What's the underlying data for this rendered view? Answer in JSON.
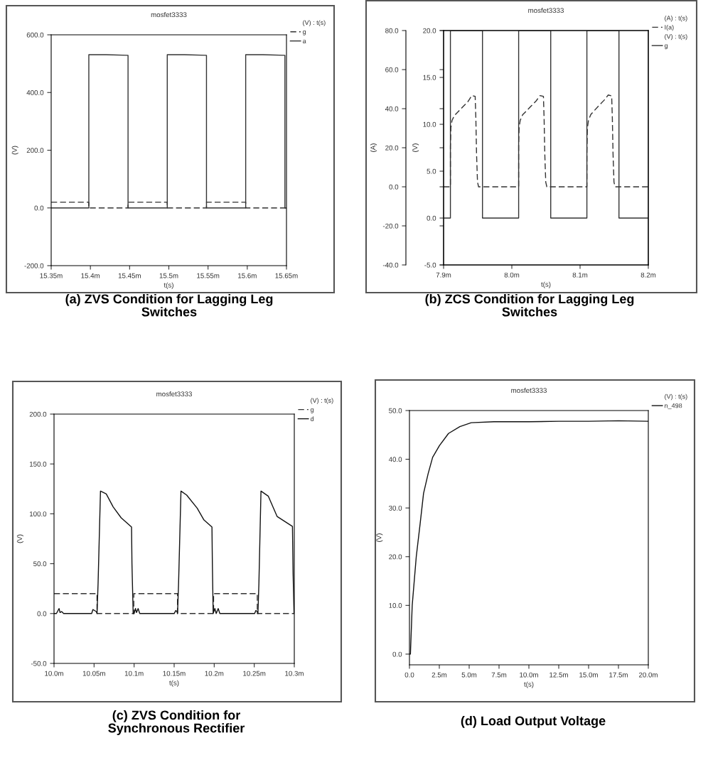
{
  "chart_data": [
    {
      "type": "line",
      "title": "mosfet3333",
      "xlabel": "t(s)",
      "ylabel": "(V)",
      "legend": "right",
      "legend_title": "(V) : t(s)",
      "xlim": [
        15.35,
        15.65
      ],
      "xticks": [
        {
          "value": 15.35,
          "label": "15.35m"
        },
        {
          "value": 15.4,
          "label": "15.4m"
        },
        {
          "value": 15.45,
          "label": "15.45m"
        },
        {
          "value": 15.5,
          "label": "15.5m"
        },
        {
          "value": 15.55,
          "label": "15.55m"
        },
        {
          "value": 15.6,
          "label": "15.6m"
        },
        {
          "value": 15.65,
          "label": "15.65m"
        }
      ],
      "ylim": [
        -200,
        600
      ],
      "yticks": [
        {
          "value": -200,
          "label": "-200.0"
        },
        {
          "value": 0,
          "label": "0.0"
        },
        {
          "value": 200,
          "label": "200.0"
        },
        {
          "value": 400,
          "label": "400.0"
        },
        {
          "value": 600,
          "label": "600.0"
        }
      ],
      "series": [
        {
          "name": "g",
          "color": "#333333",
          "line_style": "dashed",
          "x": [
            15.35,
            15.398,
            15.398,
            15.448,
            15.448,
            15.498,
            15.498,
            15.548,
            15.548,
            15.598,
            15.598,
            15.65
          ],
          "values": [
            20,
            20,
            0,
            0,
            20,
            20,
            0,
            0,
            20,
            20,
            0,
            0
          ]
        },
        {
          "name": "a",
          "color": "#333333",
          "line_style": "solid",
          "x": [
            15.35,
            15.398,
            15.398,
            15.42,
            15.448,
            15.448,
            15.498,
            15.498,
            15.52,
            15.548,
            15.548,
            15.598,
            15.598,
            15.62,
            15.648,
            15.648,
            15.65
          ],
          "values": [
            0,
            0,
            531,
            531,
            529,
            0,
            0,
            531,
            531,
            529,
            0,
            0,
            531,
            531,
            529,
            0,
            0
          ]
        }
      ],
      "annotations": [
        "(a) ZVS Condition for Lagging Leg\nSwitches"
      ]
    },
    {
      "type": "line",
      "title": "mosfet3333",
      "xlabel": "t(s)",
      "ylabel": "(A)",
      "y2label": "(V)",
      "legend": "right",
      "legend_title": "(A) : t(s)",
      "xlim": [
        7.9,
        8.2
      ],
      "xticks": [
        {
          "value": 7.9,
          "label": "7.9m"
        },
        {
          "value": 8.0,
          "label": "8.0m"
        },
        {
          "value": 8.1,
          "label": "8.1m"
        },
        {
          "value": 8.2,
          "label": "8.2m"
        }
      ],
      "ylim": [
        -40,
        80
      ],
      "yticks": [
        {
          "value": -40,
          "label": "-40.0"
        },
        {
          "value": -20,
          "label": "-20.0"
        },
        {
          "value": 0,
          "label": "0.0"
        },
        {
          "value": 20,
          "label": "20.0"
        },
        {
          "value": 40,
          "label": "40.0"
        },
        {
          "value": 60,
          "label": "60.0"
        },
        {
          "value": 80,
          "label": "80.0"
        }
      ],
      "y2lim": [
        -5,
        20
      ],
      "y2ticks": [
        {
          "value": -5,
          "label": "-5.0"
        },
        {
          "value": 0,
          "label": "0.0"
        },
        {
          "value": 5,
          "label": "5.0"
        },
        {
          "value": 10,
          "label": "10.0"
        },
        {
          "value": 15,
          "label": "15.0"
        },
        {
          "value": 20,
          "label": "20.0"
        }
      ],
      "series": [
        {
          "name": "I(a)",
          "color": "#333333",
          "line_style": "dashed",
          "axis": "y",
          "x": [
            7.9,
            7.91,
            7.91,
            7.9107,
            7.9123,
            7.9157,
            7.9273,
            7.9357,
            7.9413,
            7.9463,
            7.9473,
            7.9483,
            7.9497,
            7.9513,
            8.01,
            8.01,
            8.0107,
            8.0123,
            8.0157,
            8.0273,
            8.0357,
            8.0413,
            8.0463,
            8.0473,
            8.0483,
            8.0497,
            8.0513,
            8.11,
            8.11,
            8.1107,
            8.1123,
            8.1157,
            8.1273,
            8.1357,
            8.1413,
            8.1463,
            8.1473,
            8.1483,
            8.1497,
            8.1513,
            8.2
          ],
          "values": [
            0,
            0,
            20.6,
            30.3,
            33.9,
            36.4,
            40.6,
            43.6,
            46.7,
            46.3,
            35,
            17,
            2.4,
            0,
            0,
            22,
            30.5,
            34,
            36.8,
            41,
            44,
            46.7,
            46.3,
            35,
            17,
            2.4,
            0,
            0,
            18,
            30,
            34,
            37,
            41.5,
            44.5,
            47,
            46.5,
            35,
            17,
            2.4,
            0,
            0
          ]
        },
        {
          "name": "g",
          "color": "#333333",
          "line_style": "solid",
          "axis": "y2",
          "x": [
            7.9,
            7.91,
            7.91,
            7.957,
            7.957,
            8.01,
            8.01,
            8.057,
            8.057,
            8.11,
            8.11,
            8.157,
            8.157,
            8.2
          ],
          "values": [
            0,
            0,
            20,
            20,
            0,
            0,
            20,
            20,
            0,
            0,
            20,
            20,
            0,
            0
          ]
        }
      ],
      "annotations": [
        "(V) : t(s)",
        "(b) ZCS Condition for Lagging Leg\nSwitches"
      ]
    },
    {
      "type": "line",
      "title": "mosfet3333",
      "xlabel": "t(s)",
      "ylabel": "(V)",
      "legend": "right",
      "legend_title": "(V) : t(s)",
      "xlim": [
        10.0,
        10.3
      ],
      "xticks": [
        {
          "value": 10.0,
          "label": "10.0m"
        },
        {
          "value": 10.05,
          "label": "10.05m"
        },
        {
          "value": 10.1,
          "label": "10.1m"
        },
        {
          "value": 10.15,
          "label": "10.15m"
        },
        {
          "value": 10.2,
          "label": "10.2m"
        },
        {
          "value": 10.25,
          "label": "10.25m"
        },
        {
          "value": 10.3,
          "label": "10.3m"
        }
      ],
      "ylim": [
        -50,
        200
      ],
      "yticks": [
        {
          "value": -50,
          "label": "-50.0"
        },
        {
          "value": 0,
          "label": "0.0"
        },
        {
          "value": 50,
          "label": "50.0"
        },
        {
          "value": 100,
          "label": "100.0"
        },
        {
          "value": 150,
          "label": "150.0"
        },
        {
          "value": 200,
          "label": "200.0"
        }
      ],
      "series": [
        {
          "name": "g",
          "color": "#333333",
          "line_style": "dashed",
          "x": [
            10.0,
            10.0537,
            10.0537,
            10.0996,
            10.0996,
            10.1542,
            10.1542,
            10.1992,
            10.1992,
            10.2538,
            10.2538,
            10.3
          ],
          "values": [
            20,
            20,
            0,
            0,
            20,
            20,
            0,
            0,
            20,
            20,
            0,
            0
          ]
        },
        {
          "name": "d",
          "color": "#111111",
          "line_style": "solid",
          "x": [
            10.0,
            10.003,
            10.0063,
            10.0075,
            10.0095,
            10.012,
            10.047,
            10.0485,
            10.0527,
            10.0537,
            10.055,
            10.058,
            10.0652,
            10.0738,
            10.0838,
            10.0968,
            10.0973,
            10.0988,
            10.1,
            10.1017,
            10.103,
            10.105,
            10.107,
            10.15,
            10.152,
            10.1535,
            10.1542,
            10.1555,
            10.1585,
            10.1656,
            10.1787,
            10.1872,
            10.1972,
            10.1977,
            10.1987,
            10.2008,
            10.2025,
            10.205,
            10.207,
            10.2505,
            10.252,
            10.2538,
            10.2546,
            10.2558,
            10.2584,
            10.2676,
            10.2785,
            10.2977,
            10.2985,
            10.2997,
            10.3
          ],
          "values": [
            0,
            0,
            5,
            1,
            2,
            0,
            0,
            4,
            2,
            0,
            30,
            122.8,
            120,
            107,
            96,
            86.7,
            50,
            0,
            0,
            5,
            1,
            5,
            0,
            0,
            3,
            2,
            0,
            30,
            122.8,
            118.8,
            105.7,
            93.8,
            86.7,
            50,
            0,
            5,
            0,
            5,
            0,
            0,
            3,
            2,
            0,
            30,
            122.8,
            117.6,
            97.4,
            87.4,
            40,
            0,
            0
          ]
        }
      ],
      "annotations": [
        "(c) ZVS Condition for\nSynchronous Rectifier"
      ]
    },
    {
      "type": "line",
      "title": "mosfet3333",
      "xlabel": "t(s)",
      "ylabel": "(V)",
      "legend": "right",
      "legend_title": "(V) : t(s)",
      "xlim": [
        0,
        20
      ],
      "xticks": [
        {
          "value": 0,
          "label": "0.0"
        },
        {
          "value": 2.5,
          "label": "2.5m"
        },
        {
          "value": 5,
          "label": "5.0m"
        },
        {
          "value": 7.5,
          "label": "7.5m"
        },
        {
          "value": 10,
          "label": "10.0m"
        },
        {
          "value": 12.5,
          "label": "12.5m"
        },
        {
          "value": 15,
          "label": "15.0m"
        },
        {
          "value": 17.5,
          "label": "17.5m"
        },
        {
          "value": 20,
          "label": "20.0m"
        }
      ],
      "ylim": [
        -2.2,
        50
      ],
      "yticks": [
        {
          "value": 0,
          "label": "0.0"
        },
        {
          "value": 10,
          "label": "10.0"
        },
        {
          "value": 20,
          "label": "20.0"
        },
        {
          "value": 30,
          "label": "30.0"
        },
        {
          "value": 40,
          "label": "40.0"
        },
        {
          "value": 50,
          "label": "50.0"
        }
      ],
      "series": [
        {
          "name": "n_498",
          "color": "#111111",
          "line_style": "solid",
          "x": [
            0,
            0.08,
            0.23,
            0.57,
            0.89,
            1.18,
            1.56,
            1.94,
            2.51,
            3.27,
            4.22,
            5.17,
            7.07,
            10,
            12.5,
            15,
            17.5,
            20
          ],
          "values": [
            0,
            0,
            10,
            20,
            26.7,
            33,
            37,
            40.4,
            42.8,
            45.3,
            46.7,
            47.5,
            47.7,
            47.7,
            47.8,
            47.8,
            47.9,
            47.8
          ]
        }
      ],
      "annotations": [
        "(d) Load Output Voltage"
      ]
    }
  ]
}
